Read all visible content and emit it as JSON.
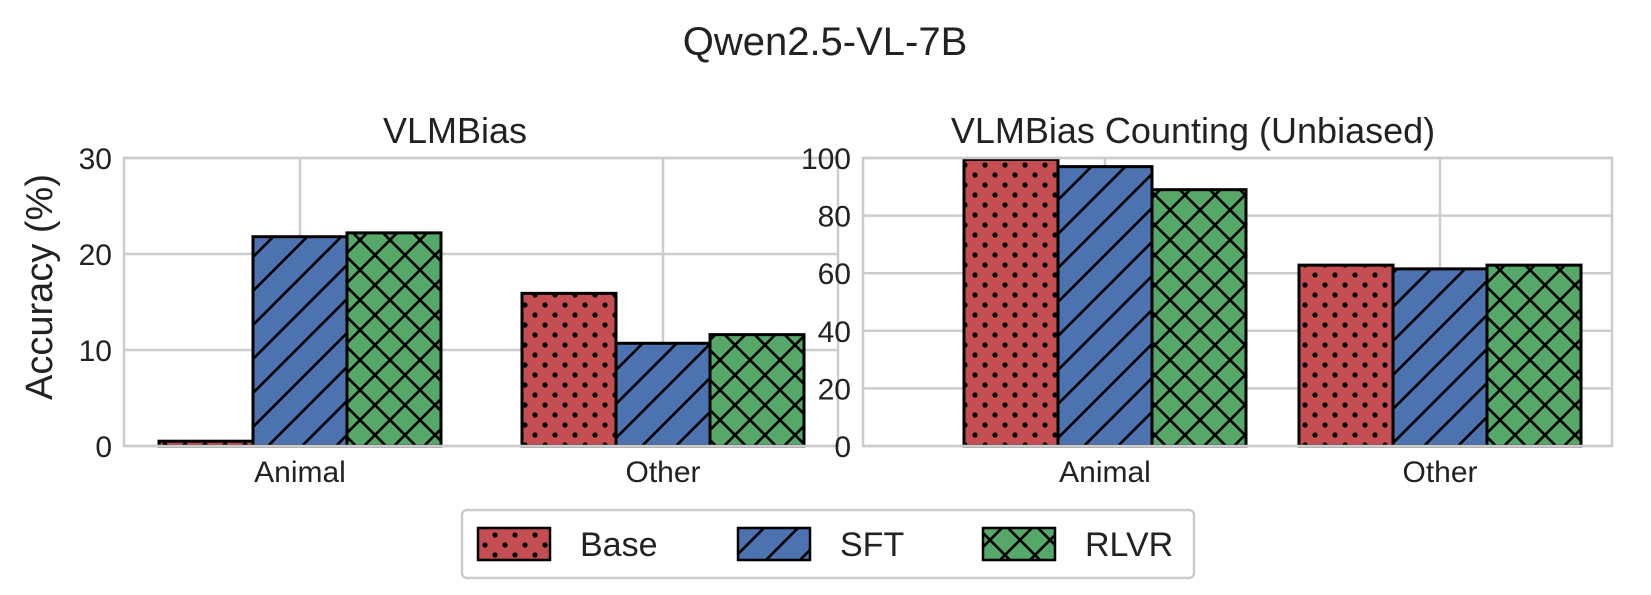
{
  "figure_title": "Qwen2.5-VL-7B",
  "ylabel": "Accuracy (%)",
  "colors": {
    "Base": "#c44e52",
    "SFT": "#4c72b0",
    "RLVR": "#55a868",
    "grid": "#cccccc",
    "edge": "#000000"
  },
  "legend": {
    "position": "bottom-center",
    "entries": [
      {
        "name": "Base",
        "pattern": "dots"
      },
      {
        "name": "SFT",
        "pattern": "diagonal"
      },
      {
        "name": "RLVR",
        "pattern": "crosshatch"
      }
    ]
  },
  "chart_data": [
    {
      "type": "bar",
      "title": "VLMBias",
      "xlabel": "",
      "ylabel": "Accuracy (%)",
      "ylim": [
        0,
        30
      ],
      "yticks": [
        0,
        10,
        20,
        30
      ],
      "categories": [
        "Animal",
        "Other"
      ],
      "series": [
        {
          "name": "Base",
          "values": [
            0.5,
            15.9
          ]
        },
        {
          "name": "SFT",
          "values": [
            21.8,
            10.7
          ]
        },
        {
          "name": "RLVR",
          "values": [
            22.2,
            11.6
          ]
        }
      ],
      "grid": true
    },
    {
      "type": "bar",
      "title": "VLMBias Counting (Unbiased)",
      "xlabel": "",
      "ylabel": "",
      "ylim": [
        0,
        100
      ],
      "yticks": [
        0,
        20,
        40,
        60,
        80,
        100
      ],
      "categories": [
        "Animal",
        "Other"
      ],
      "series": [
        {
          "name": "Base",
          "values": [
            99.5,
            62.8
          ]
        },
        {
          "name": "SFT",
          "values": [
            97.0,
            61.5
          ]
        },
        {
          "name": "RLVR",
          "values": [
            89.0,
            62.8
          ]
        }
      ],
      "grid": true
    }
  ]
}
